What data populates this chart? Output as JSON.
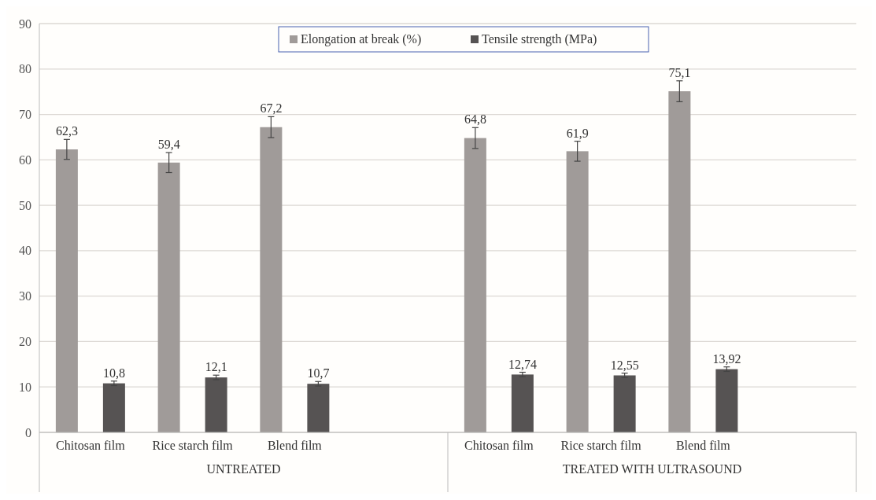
{
  "chart_data": {
    "type": "bar",
    "categories": [
      "Chitosan film",
      "Rice starch film",
      "Blend film",
      null,
      "Chitosan film",
      "Rice starch film",
      "Blend film",
      null
    ],
    "series": [
      {
        "name": "Elongation at break  (%)",
        "color": "#a09b99",
        "values": [
          62.3,
          59.4,
          67.2,
          null,
          64.8,
          61.9,
          75.1,
          null
        ],
        "errors": [
          2.2,
          2.2,
          2.3,
          null,
          2.3,
          2.2,
          2.3,
          null
        ],
        "value_labels": [
          "62,3",
          "59,4",
          "67,2",
          null,
          "64,8",
          "61,9",
          "75,1",
          null
        ]
      },
      {
        "name": "Tensile strength  (MPa)",
        "color": "#565353",
        "values": [
          10.8,
          12.1,
          10.7,
          null,
          12.74,
          12.55,
          13.92,
          null
        ],
        "errors": [
          0.5,
          0.5,
          0.5,
          null,
          0.5,
          0.5,
          0.5,
          null
        ],
        "value_labels": [
          "10,8",
          "12,1",
          "10,7",
          null,
          "12,74",
          "12,55",
          "13,92",
          null
        ]
      }
    ],
    "annotations": [
      "UNTREATED",
      "TREATED WITH ULTRASOUND"
    ],
    "ylim": [
      0,
      90
    ],
    "yticks": [
      0,
      10,
      20,
      30,
      40,
      50,
      60,
      70,
      80,
      90
    ],
    "grid": "y",
    "legend": "top"
  }
}
